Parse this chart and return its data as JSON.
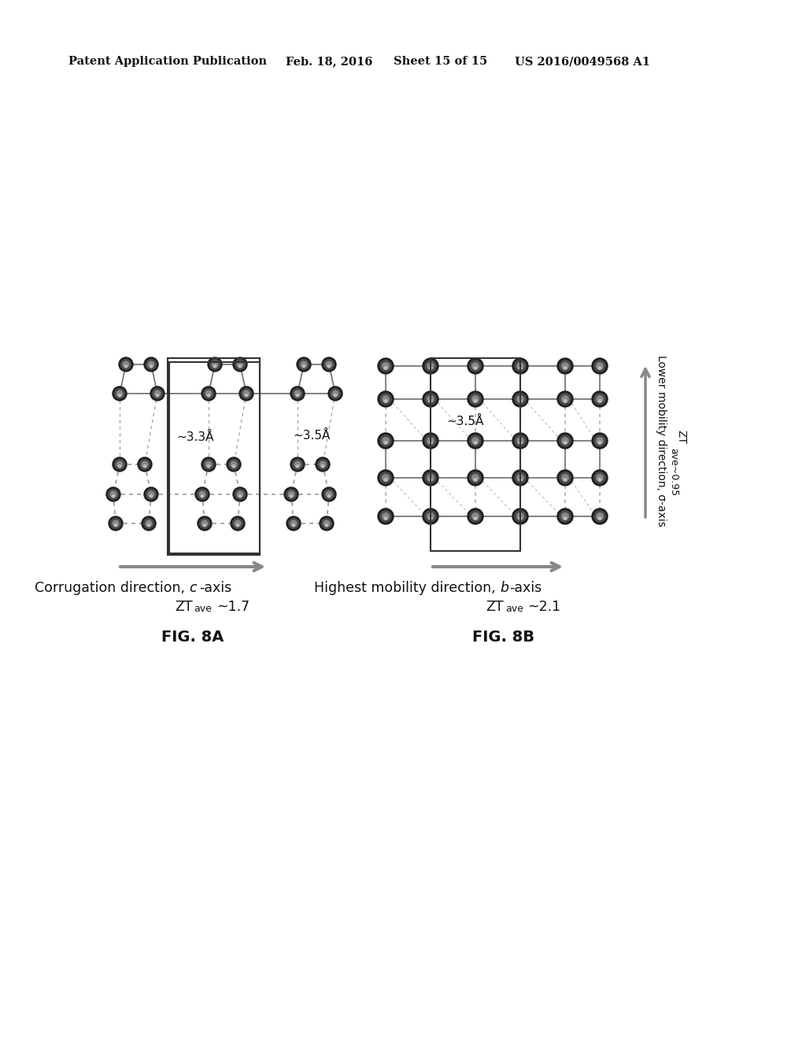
{
  "bg_color": "#ffffff",
  "header_text": "Patent Application Publication",
  "header_date": "Feb. 18, 2016",
  "header_sheet": "Sheet 15 of 15",
  "header_patent": "US 2016/0049568 A1",
  "fig8a_label": "FIG. 8A",
  "fig8b_label": "FIG. 8B",
  "node_dark": "#222222",
  "node_mid": "#555555",
  "node_light": "#888888",
  "bond_solid": "#777777",
  "bond_dash": "#aaaaaa",
  "arrow_gray": "#888888",
  "rect_color": "#333333",
  "text_color": "#111111"
}
